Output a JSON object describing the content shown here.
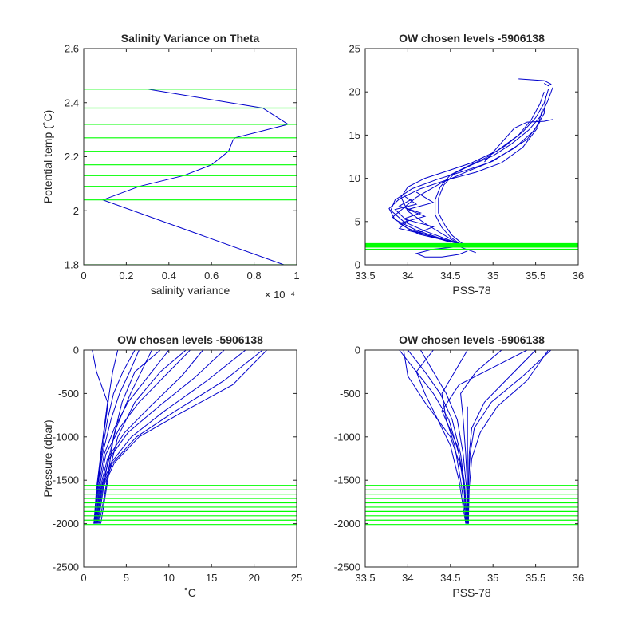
{
  "chart_data": [
    {
      "type": "line",
      "title": "Salinity Variance on Theta",
      "xlabel": "salinity variance",
      "ylabel": "Potential temp (˚C)",
      "x_exponent_label": "× 10⁻⁴",
      "xlim": [
        0,
        1
      ],
      "ylim": [
        1.8,
        2.6
      ],
      "xticks": [
        "0",
        "0.2",
        "0.4",
        "0.6",
        "0.8",
        "1"
      ],
      "yticks": [
        "1.8",
        "2",
        "2.2",
        "2.4",
        "2.6"
      ],
      "colors": {
        "series": "#0000cc",
        "levels": "#00ff00"
      },
      "series": [
        {
          "x": [
            0.94,
            0.09,
            0.26,
            0.47,
            0.6,
            0.68,
            0.7,
            0.71,
            0.96,
            0.84,
            0.3
          ],
          "y": [
            1.8,
            2.04,
            2.09,
            2.13,
            2.17,
            2.22,
            2.26,
            2.27,
            2.32,
            2.38,
            2.45
          ]
        }
      ],
      "levels": [
        1.8,
        2.04,
        2.09,
        2.13,
        2.17,
        2.22,
        2.27,
        2.32,
        2.38,
        2.45
      ]
    },
    {
      "type": "line",
      "title": "OW chosen levels -5906138",
      "xlabel": "PSS-78",
      "ylabel": "",
      "xlim": [
        33.5,
        36
      ],
      "ylim": [
        0,
        25
      ],
      "xticks": [
        "33.5",
        "34",
        "34.5",
        "35",
        "35.5",
        "36"
      ],
      "yticks": [
        "0",
        "5",
        "10",
        "15",
        "20",
        "25"
      ],
      "colors": {
        "series": "#0000cc",
        "levels": "#00ff00"
      },
      "series": [
        {
          "x": [
            34.7,
            34.6,
            34.5,
            34.4,
            34.32,
            34.32,
            34.38,
            34.5,
            34.7,
            34.92,
            35.15,
            35.35,
            35.5,
            35.6,
            35.65
          ],
          "y": [
            2.0,
            2.5,
            3.2,
            4.3,
            5.8,
            7.5,
            9.0,
            10.4,
            11.4,
            12.4,
            13.8,
            15.4,
            17.0,
            18.7,
            20.3
          ]
        },
        {
          "x": [
            34.72,
            34.62,
            34.52,
            34.44,
            34.36,
            34.36,
            34.42,
            34.55,
            34.76,
            35.0,
            35.22,
            35.42,
            35.56,
            35.64,
            35.7
          ],
          "y": [
            2.0,
            2.6,
            3.4,
            4.5,
            6.0,
            7.7,
            9.2,
            10.6,
            11.6,
            12.6,
            14.0,
            15.6,
            17.2,
            18.9,
            20.5
          ]
        },
        {
          "x": [
            34.68,
            34.55,
            34.4,
            34.2,
            34.0,
            33.92,
            34.0,
            34.2,
            34.45,
            34.75,
            35.05,
            35.3,
            35.45,
            35.55,
            35.6
          ],
          "y": [
            2.1,
            2.7,
            3.6,
            4.8,
            6.2,
            7.8,
            9.0,
            10.0,
            10.8,
            11.8,
            13.2,
            15.0,
            16.8,
            18.6,
            20.0
          ]
        },
        {
          "x": [
            34.7,
            34.5,
            34.2,
            33.95,
            33.8,
            33.85,
            34.05,
            34.35,
            34.65,
            34.95,
            35.25,
            35.48,
            35.6,
            35.62
          ],
          "y": [
            2.1,
            2.8,
            3.9,
            5.0,
            6.3,
            7.5,
            8.8,
            9.9,
            10.8,
            11.8,
            13.5,
            15.5,
            17.5,
            19.5
          ]
        },
        {
          "x": [
            34.7,
            34.4,
            34.1,
            33.85,
            33.78,
            33.9,
            34.15,
            34.45,
            34.8,
            35.1,
            35.35,
            35.52,
            35.58
          ],
          "y": [
            2.2,
            3.0,
            4.0,
            5.2,
            6.5,
            7.6,
            8.8,
            9.8,
            10.7,
            11.8,
            13.6,
            15.8,
            18.0
          ]
        },
        {
          "x": [
            34.72,
            34.3,
            34.0,
            33.82,
            34.1,
            34.4,
            34.7,
            35.0,
            35.4,
            35.55
          ],
          "y": [
            2.2,
            3.2,
            4.2,
            5.5,
            7.8,
            9.5,
            10.8,
            12.0,
            14.5,
            16.5
          ]
        },
        {
          "x": [
            34.9,
            35.25,
            35.4,
            35.6,
            35.7
          ],
          "y": [
            11.9,
            15.8,
            16.5,
            16.6,
            16.8
          ]
        },
        {
          "x": [
            35.3,
            35.6,
            35.68,
            35.65,
            35.6
          ],
          "y": [
            21.5,
            21.3,
            20.9,
            20.7,
            21.0
          ]
        },
        {
          "x": [
            34.7,
            34.6,
            34.4,
            34.2,
            34.1,
            34.3,
            34.6,
            34.8
          ],
          "y": [
            1.6,
            1.2,
            0.9,
            0.9,
            1.3,
            1.8,
            2.1,
            1.4
          ]
        },
        {
          "x": [
            34.5,
            34.2,
            33.9,
            34.0,
            33.85,
            34.1,
            33.95
          ],
          "y": [
            2.6,
            3.5,
            4.2,
            5.0,
            6.4,
            7.0,
            8.0
          ]
        },
        {
          "x": [
            34.45,
            34.1,
            34.3,
            33.95,
            34.15,
            33.9,
            34.05
          ],
          "y": [
            2.8,
            3.6,
            4.4,
            5.3,
            6.0,
            6.8,
            7.6
          ]
        },
        {
          "x": [
            34.6,
            34.35,
            34.05,
            33.9,
            34.2,
            34.0,
            34.3,
            34.1
          ],
          "y": [
            2.4,
            3.1,
            3.9,
            4.8,
            5.6,
            6.4,
            7.2,
            8.4
          ]
        }
      ],
      "levels": [
        1.8,
        2.04,
        2.09,
        2.13,
        2.17,
        2.22,
        2.27,
        2.32,
        2.38,
        2.45
      ]
    },
    {
      "type": "line",
      "title": "OW chosen levels -5906138",
      "xlabel": "˚C",
      "ylabel": "Pressure (dbar)",
      "xlim": [
        0,
        25
      ],
      "ylim": [
        -2500,
        0
      ],
      "xticks": [
        "0",
        "5",
        "10",
        "15",
        "20",
        "25"
      ],
      "yticks": [
        "-2500",
        "-2000",
        "-1500",
        "-1000",
        "-500",
        "0"
      ],
      "colors": {
        "series": "#0000cc",
        "levels": "#00ff00"
      },
      "series": [
        {
          "x": [
            1.2,
            1.6,
            2.2,
            3.2,
            4.2,
            5.4,
            6.5
          ],
          "y": [
            -2000,
            -1600,
            -1200,
            -800,
            -500,
            -250,
            0
          ]
        },
        {
          "x": [
            1.2,
            1.5,
            2.0,
            2.6,
            3.0,
            3.4,
            4.0
          ],
          "y": [
            -2000,
            -1600,
            -1200,
            -800,
            -500,
            -250,
            0
          ]
        },
        {
          "x": [
            1.3,
            1.6,
            2.1,
            2.8,
            3.5,
            4.6,
            6.0
          ],
          "y": [
            -2000,
            -1600,
            -1200,
            -800,
            -500,
            -250,
            0
          ]
        },
        {
          "x": [
            1.3,
            1.7,
            2.4,
            3.6,
            5.2,
            7.6,
            10.0
          ],
          "y": [
            -2000,
            -1600,
            -1200,
            -900,
            -600,
            -300,
            0
          ]
        },
        {
          "x": [
            1.4,
            1.8,
            2.6,
            4.2,
            6.5,
            9.5,
            12.5
          ],
          "y": [
            -2000,
            -1600,
            -1200,
            -900,
            -600,
            -300,
            0
          ]
        },
        {
          "x": [
            1.4,
            1.9,
            2.8,
            4.8,
            7.8,
            11.5,
            14.0
          ],
          "y": [
            -2000,
            -1600,
            -1250,
            -950,
            -650,
            -300,
            0
          ]
        },
        {
          "x": [
            1.5,
            2.0,
            3.0,
            5.2,
            8.8,
            13.0,
            16.5
          ],
          "y": [
            -2000,
            -1600,
            -1250,
            -950,
            -650,
            -320,
            0
          ]
        },
        {
          "x": [
            1.5,
            2.0,
            3.2,
            5.6,
            9.5,
            14.5,
            19.0
          ],
          "y": [
            -2000,
            -1600,
            -1300,
            -1000,
            -700,
            -350,
            0
          ]
        },
        {
          "x": [
            1.6,
            2.1,
            3.4,
            6.2,
            10.8,
            16.5,
            21.0
          ],
          "y": [
            -2000,
            -1600,
            -1300,
            -1000,
            -700,
            -350,
            0
          ]
        },
        {
          "x": [
            1.6,
            2.2,
            3.6,
            6.5,
            11.5,
            17.5,
            21.5
          ],
          "y": [
            -2000,
            -1600,
            -1300,
            -1000,
            -720,
            -400,
            0
          ]
        },
        {
          "x": [
            1.7,
            2.3,
            2.8,
            3.8,
            5.5,
            8.0
          ],
          "y": [
            -2000,
            -1600,
            -1300,
            -900,
            -500,
            0
          ]
        },
        {
          "x": [
            1.8,
            2.4,
            2.9,
            3.5,
            4.5,
            6.0,
            9.0
          ],
          "y": [
            -2000,
            -1700,
            -1400,
            -1000,
            -600,
            -250,
            0
          ]
        },
        {
          "x": [
            2.0,
            2.5,
            3.0,
            4.0,
            6.0,
            9.0,
            12.0
          ],
          "y": [
            -2000,
            -1700,
            -1400,
            -1000,
            -600,
            -250,
            0
          ]
        },
        {
          "x": [
            1.2,
            1.6,
            2.0,
            2.4,
            2.8,
            1.5,
            1.0
          ],
          "y": [
            -2000,
            -1600,
            -1200,
            -900,
            -600,
            -250,
            0
          ]
        }
      ],
      "levels": [
        -1560,
        -1610,
        -1660,
        -1710,
        -1760,
        -1810,
        -1860,
        -1910,
        -1960,
        -2010
      ]
    },
    {
      "type": "line",
      "title": "OW chosen levels -5906138",
      "xlabel": "PSS-78",
      "ylabel": "",
      "xlim": [
        33.5,
        36
      ],
      "ylim": [
        -2500,
        0
      ],
      "xticks": [
        "33.5",
        "34",
        "34.5",
        "35",
        "35.5",
        "36"
      ],
      "yticks": [
        "-2500",
        "-2000",
        "-1500",
        "-1000",
        "-500",
        "0"
      ],
      "colors": {
        "series": "#0000cc",
        "levels": "#00ff00"
      },
      "series": [
        {
          "x": [
            34.68,
            34.66,
            34.6,
            34.48,
            34.3,
            34.1,
            33.9
          ],
          "y": [
            -2000,
            -1600,
            -1200,
            -800,
            -500,
            -250,
            0
          ]
        },
        {
          "x": [
            34.69,
            34.67,
            34.62,
            34.52,
            34.38,
            34.2,
            34.0
          ],
          "y": [
            -2000,
            -1600,
            -1200,
            -800,
            -500,
            -250,
            0
          ]
        },
        {
          "x": [
            34.7,
            34.69,
            34.65,
            34.58,
            34.45,
            34.3,
            34.15
          ],
          "y": [
            -2000,
            -1600,
            -1200,
            -800,
            -500,
            -250,
            0
          ]
        },
        {
          "x": [
            34.71,
            34.7,
            34.68,
            34.65,
            34.62,
            34.8,
            35.1
          ],
          "y": [
            -2000,
            -1600,
            -1200,
            -800,
            -500,
            -250,
            0
          ]
        },
        {
          "x": [
            34.71,
            34.71,
            34.72,
            34.75,
            34.9,
            35.2,
            35.5
          ],
          "y": [
            -2000,
            -1600,
            -1200,
            -900,
            -600,
            -300,
            0
          ]
        },
        {
          "x": [
            34.71,
            34.71,
            34.73,
            34.78,
            34.98,
            35.35,
            35.68
          ],
          "y": [
            -2000,
            -1600,
            -1200,
            -900,
            -600,
            -300,
            0
          ]
        },
        {
          "x": [
            34.71,
            34.72,
            34.75,
            34.85,
            35.05,
            35.4,
            35.65
          ],
          "y": [
            -2000,
            -1600,
            -1250,
            -950,
            -650,
            -350,
            0
          ]
        },
        {
          "x": [
            34.7,
            34.7,
            34.7,
            34.7,
            34.7
          ],
          "y": [
            -2000,
            -1500,
            -1000,
            -700,
            -650
          ]
        },
        {
          "x": [
            34.68,
            34.6,
            34.5,
            34.35,
            34.2,
            34.1,
            34.3
          ],
          "y": [
            -2000,
            -1500,
            -1100,
            -800,
            -500,
            -250,
            0
          ]
        },
        {
          "x": [
            34.69,
            34.62,
            34.55,
            34.45,
            34.4,
            34.55,
            34.7
          ],
          "y": [
            -2000,
            -1500,
            -1100,
            -800,
            -500,
            -250,
            0
          ]
        },
        {
          "x": [
            34.7,
            34.64,
            34.5,
            34.2,
            34.0,
            33.95
          ],
          "y": [
            -2000,
            -1400,
            -1000,
            -600,
            -300,
            0
          ]
        },
        {
          "x": [
            34.7,
            34.66,
            34.58,
            34.4,
            34.6,
            35.0,
            35.4
          ],
          "y": [
            -2000,
            -1500,
            -1100,
            -700,
            -400,
            -200,
            0
          ]
        }
      ],
      "levels": [
        -1560,
        -1610,
        -1660,
        -1710,
        -1760,
        -1810,
        -1860,
        -1910,
        -1960,
        -2010
      ]
    }
  ]
}
